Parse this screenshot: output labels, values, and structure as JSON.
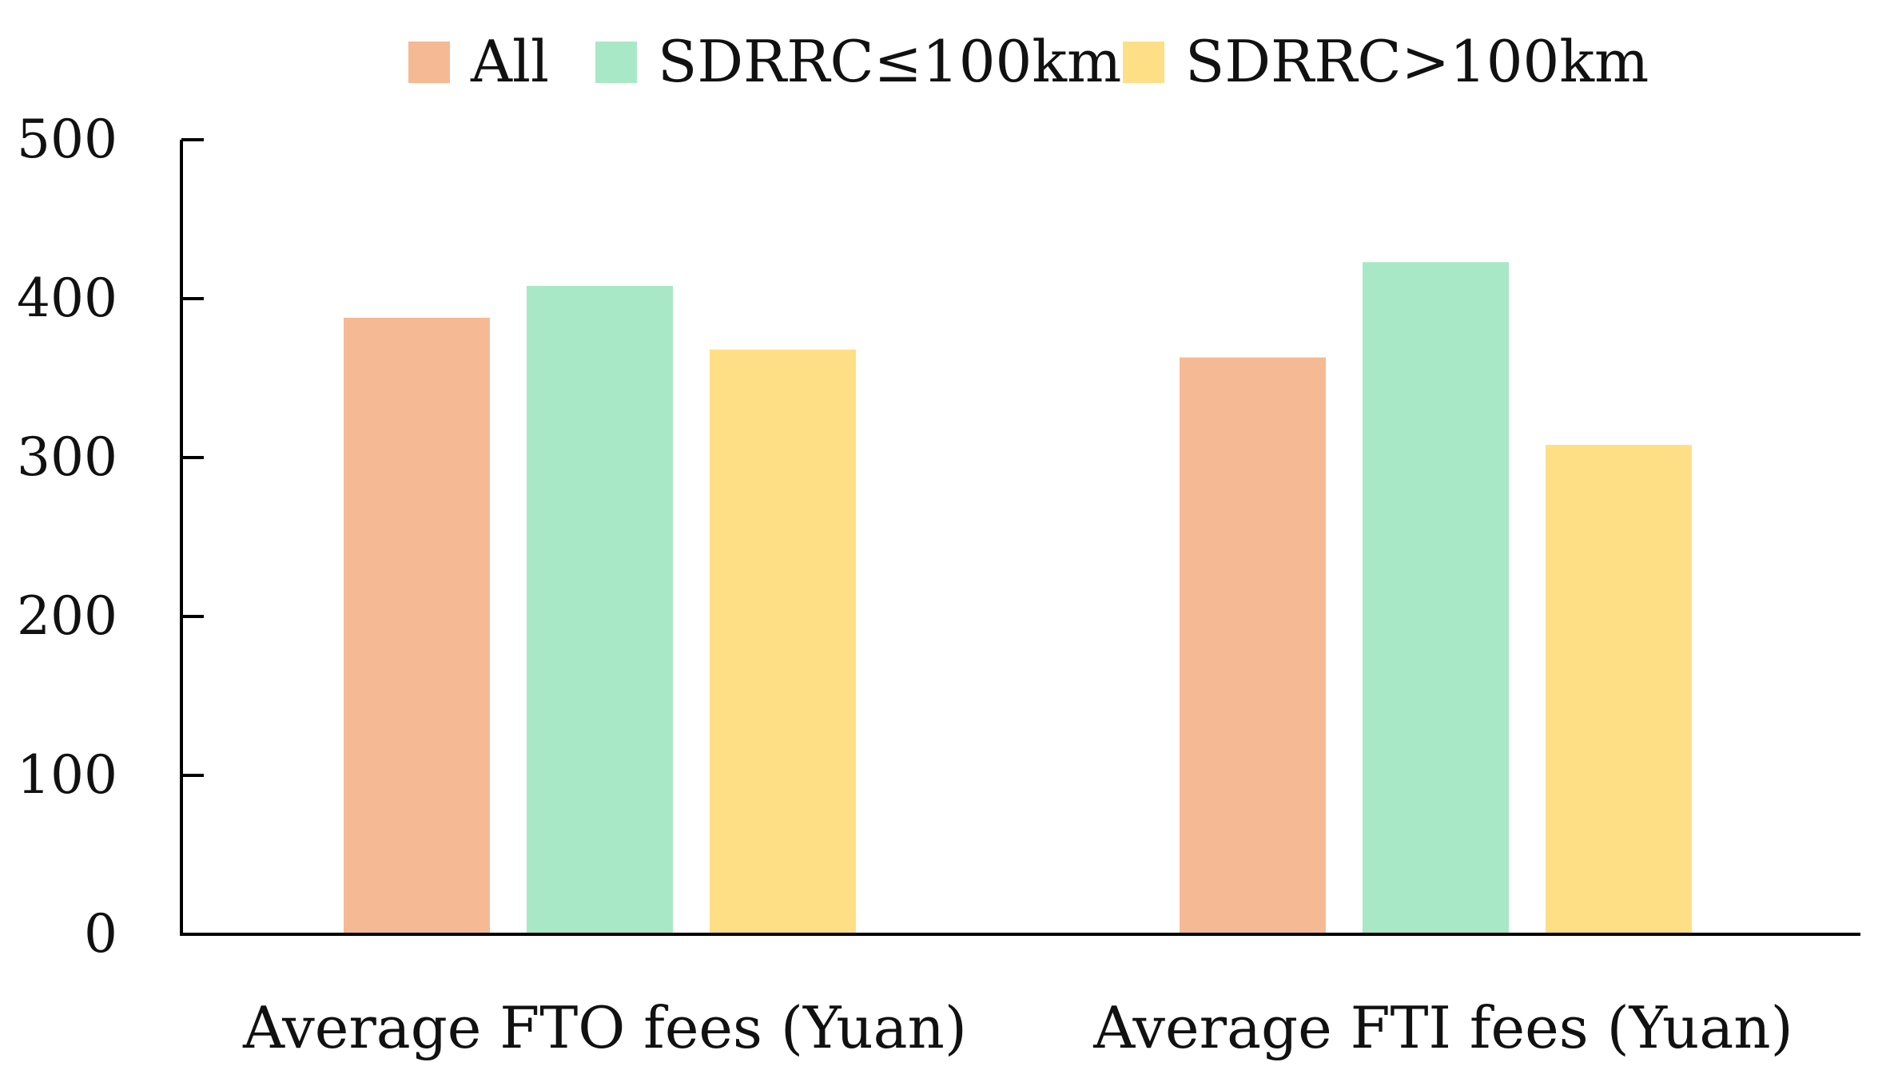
{
  "chart_data": {
    "type": "bar",
    "title": "",
    "xlabel": "",
    "ylabel": "",
    "categories": [
      "Average FTO fees (Yuan)",
      "Average FTI fees (Yuan)"
    ],
    "series": [
      {
        "name": "All",
        "values": [
          388,
          363
        ],
        "color": "#F5BA94"
      },
      {
        "name": "SDRRC≤100km",
        "values": [
          408,
          423
        ],
        "color": "#A9E8C6"
      },
      {
        "name": "SDRRC>100km",
        "values": [
          368,
          308
        ],
        "color": "#FFDF86"
      }
    ],
    "ylim": [
      0,
      500
    ],
    "yticks": [
      0,
      100,
      200,
      300,
      400,
      500
    ],
    "grid": false,
    "legend": "top-center"
  }
}
